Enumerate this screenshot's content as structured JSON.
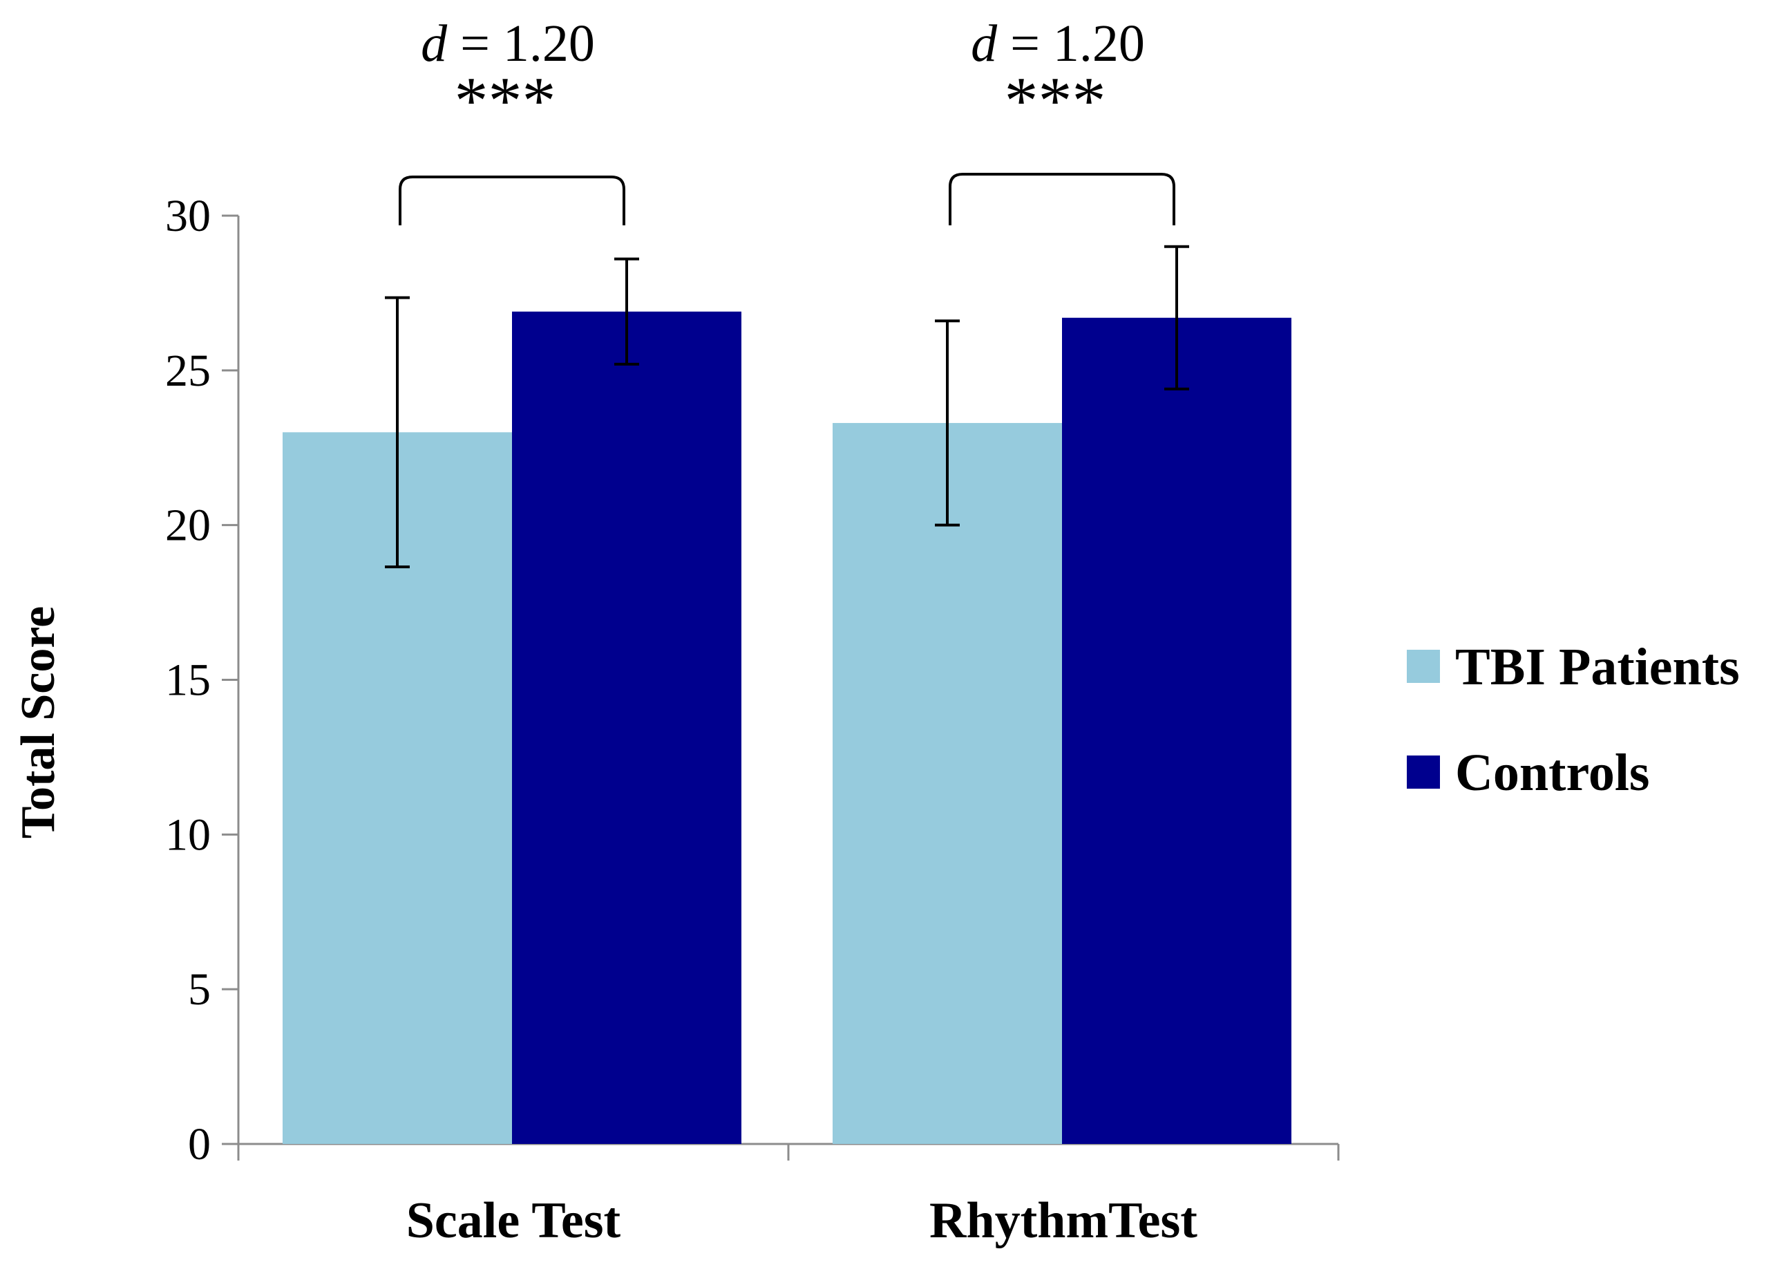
{
  "chart_data": {
    "type": "bar",
    "title": "",
    "xlabel": "",
    "ylabel": "Total Score",
    "ylim": [
      0,
      30
    ],
    "yticks": [
      0,
      5,
      10,
      15,
      20,
      25,
      30
    ],
    "grid": false,
    "legend_position": "right",
    "categories": [
      "Scale Test",
      "RhythmTest"
    ],
    "series": [
      {
        "name": "TBI Patients",
        "color": "#96CBDD",
        "values": [
          23.0,
          23.3
        ],
        "error": [
          [
            18.65,
            27.35
          ],
          [
            20.0,
            26.6
          ]
        ]
      },
      {
        "name": "Controls",
        "color": "#00008E",
        "values": [
          26.9,
          26.7
        ],
        "error": [
          [
            25.2,
            28.6
          ],
          [
            24.4,
            29.0
          ]
        ]
      }
    ],
    "annotations": [
      {
        "category": "Scale Test",
        "effect_symbol": "d",
        "effect_value": "= 1.20",
        "significance": "***"
      },
      {
        "category": "RhythmTest",
        "effect_symbol": "d",
        "effect_value": "= 1.20",
        "significance": "***"
      }
    ]
  }
}
